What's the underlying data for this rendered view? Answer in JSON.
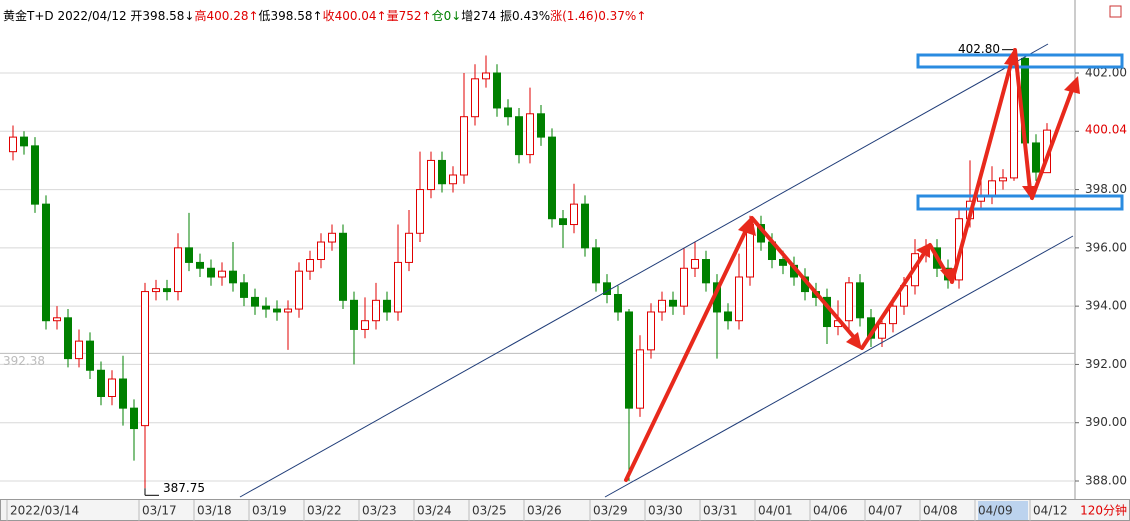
{
  "chart_data": {
    "type": "candlestick",
    "title_parts": [
      {
        "text": "黄金T+D 2022/04/12 开398.58↓",
        "color": "#000000"
      },
      {
        "text": "高400.28↑",
        "color": "#e00000"
      },
      {
        "text": "低398.58↑",
        "color": "#000000"
      },
      {
        "text": "收400.04↑",
        "color": "#e00000"
      },
      {
        "text": "量752↑",
        "color": "#e00000"
      },
      {
        "text": "仓0↓",
        "color": "#008000"
      },
      {
        "text": "增274 振0.43%",
        "color": "#000000"
      },
      {
        "text": "涨(1.46)0.37%↑",
        "color": "#e00000"
      }
    ],
    "period": "120分钟",
    "up_color": "#e00000",
    "down_color": "#008000",
    "ylim": [
      387.52,
      404.23
    ],
    "yticks": [
      {
        "value": 388,
        "label": "388.00"
      },
      {
        "value": 390,
        "label": "390.00"
      },
      {
        "value": 392,
        "label": "392.00"
      },
      {
        "value": 394,
        "label": "394.00"
      },
      {
        "value": 396,
        "label": "396.00"
      },
      {
        "value": 398,
        "label": "398.00"
      },
      {
        "value": 400,
        "label": "400.00"
      },
      {
        "value": 402,
        "label": "402.00"
      }
    ],
    "grid": true,
    "last_price": {
      "value": 400.04,
      "label": "400.04"
    },
    "high_label": {
      "value": 402.8,
      "label": "402.80"
    },
    "low_label": {
      "value": 387.75,
      "label": "387.75"
    },
    "ref_line": {
      "value": 392.38,
      "label": "392.38"
    },
    "categories": [
      "2022/03/14",
      null,
      null,
      null,
      null,
      null,
      null,
      null,
      null,
      null,
      null,
      null,
      "03/17",
      null,
      null,
      null,
      null,
      "03/18",
      null,
      null,
      null,
      null,
      "03/19",
      null,
      null,
      null,
      null,
      "03/22",
      null,
      null,
      null,
      null,
      "03/23",
      null,
      null,
      null,
      null,
      "03/24",
      null,
      null,
      null,
      null,
      "03/25",
      null,
      null,
      null,
      null,
      "03/26",
      null,
      null,
      null,
      null,
      null,
      "03/29",
      null,
      null,
      null,
      null,
      "03/30",
      null,
      null,
      null,
      null,
      "03/31",
      null,
      null,
      null,
      null,
      "04/01",
      null,
      null,
      null,
      null,
      "04/06",
      null,
      null,
      null,
      null,
      "04/07",
      null,
      null,
      null,
      null,
      "04/08",
      null,
      null,
      null,
      null,
      "04/09",
      null,
      null,
      null,
      null,
      "04/12",
      null
    ],
    "candles": [
      [
        399.3,
        400.2,
        399.0,
        399.8
      ],
      [
        399.8,
        400.0,
        399.2,
        399.5
      ],
      [
        399.5,
        399.8,
        397.2,
        397.5
      ],
      [
        397.5,
        397.8,
        393.2,
        393.5
      ],
      [
        393.5,
        394.0,
        393.2,
        393.6
      ],
      [
        393.6,
        393.9,
        391.9,
        392.2
      ],
      [
        392.2,
        393.2,
        391.9,
        392.8
      ],
      [
        392.8,
        393.1,
        391.5,
        391.8
      ],
      [
        391.8,
        392.1,
        390.6,
        390.9
      ],
      [
        390.9,
        391.8,
        390.6,
        391.5
      ],
      [
        391.5,
        392.3,
        389.9,
        390.5
      ],
      [
        390.5,
        390.8,
        388.7,
        389.8
      ],
      [
        389.9,
        394.8,
        387.75,
        394.5
      ],
      [
        394.5,
        394.9,
        394.2,
        394.6
      ],
      [
        394.6,
        394.9,
        394.2,
        394.5
      ],
      [
        394.5,
        396.5,
        394.2,
        396.0
      ],
      [
        396.0,
        397.2,
        395.2,
        395.5
      ],
      [
        395.5,
        395.8,
        395.0,
        395.3
      ],
      [
        395.3,
        395.6,
        394.7,
        395.0
      ],
      [
        395.0,
        395.5,
        394.7,
        395.2
      ],
      [
        395.2,
        396.2,
        394.5,
        394.8
      ],
      [
        394.8,
        395.1,
        394.0,
        394.3
      ],
      [
        394.3,
        394.6,
        393.7,
        394.0
      ],
      [
        394.0,
        394.3,
        393.6,
        393.9
      ],
      [
        393.9,
        394.2,
        393.5,
        393.8
      ],
      [
        393.8,
        394.2,
        392.5,
        393.9
      ],
      [
        393.9,
        395.5,
        393.6,
        395.2
      ],
      [
        395.2,
        395.9,
        394.9,
        395.6
      ],
      [
        395.6,
        396.5,
        395.3,
        396.2
      ],
      [
        396.2,
        396.8,
        395.9,
        396.5
      ],
      [
        396.5,
        396.8,
        393.9,
        394.2
      ],
      [
        394.2,
        394.5,
        392.0,
        393.2
      ],
      [
        393.2,
        394.3,
        392.9,
        393.5
      ],
      [
        393.5,
        394.8,
        393.2,
        394.2
      ],
      [
        394.2,
        394.5,
        393.5,
        393.8
      ],
      [
        393.8,
        396.8,
        393.5,
        395.5
      ],
      [
        395.5,
        397.3,
        395.2,
        396.5
      ],
      [
        396.5,
        399.3,
        396.2,
        398.0
      ],
      [
        398.0,
        399.3,
        397.7,
        399.0
      ],
      [
        399.0,
        399.3,
        397.9,
        398.2
      ],
      [
        398.2,
        398.8,
        397.9,
        398.5
      ],
      [
        398.5,
        402.0,
        398.2,
        400.5
      ],
      [
        400.5,
        402.3,
        400.2,
        401.8
      ],
      [
        401.8,
        402.6,
        401.5,
        402.0
      ],
      [
        402.0,
        402.3,
        400.5,
        400.8
      ],
      [
        400.8,
        401.1,
        400.2,
        400.5
      ],
      [
        400.5,
        400.8,
        398.9,
        399.2
      ],
      [
        399.2,
        401.5,
        398.9,
        400.6
      ],
      [
        400.6,
        400.9,
        399.5,
        399.8
      ],
      [
        399.8,
        400.1,
        396.7,
        397.0
      ],
      [
        397.0,
        397.3,
        396.0,
        396.8
      ],
      [
        396.8,
        398.2,
        396.5,
        397.5
      ],
      [
        397.5,
        397.8,
        395.7,
        396.0
      ],
      [
        396.0,
        396.3,
        394.5,
        394.8
      ],
      [
        394.8,
        395.1,
        394.1,
        394.4
      ],
      [
        394.4,
        394.7,
        393.5,
        393.8
      ],
      [
        393.8,
        393.9,
        388.0,
        390.5
      ],
      [
        390.5,
        393.0,
        390.2,
        392.5
      ],
      [
        392.5,
        394.1,
        392.2,
        393.8
      ],
      [
        393.8,
        394.5,
        393.5,
        394.2
      ],
      [
        394.2,
        394.5,
        393.7,
        394.0
      ],
      [
        394.0,
        396.0,
        393.7,
        395.3
      ],
      [
        395.3,
        396.2,
        395.0,
        395.6
      ],
      [
        395.6,
        395.9,
        394.5,
        394.8
      ],
      [
        394.8,
        395.1,
        392.2,
        393.8
      ],
      [
        393.8,
        394.1,
        393.2,
        393.5
      ],
      [
        393.5,
        395.8,
        393.2,
        395.0
      ],
      [
        395.0,
        397.1,
        394.7,
        396.8
      ],
      [
        396.8,
        397.1,
        395.9,
        396.2
      ],
      [
        396.2,
        396.5,
        395.3,
        395.6
      ],
      [
        395.6,
        395.9,
        395.1,
        395.4
      ],
      [
        395.4,
        395.7,
        394.7,
        395.0
      ],
      [
        395.0,
        395.3,
        394.2,
        394.5
      ],
      [
        394.5,
        394.8,
        394.0,
        394.3
      ],
      [
        394.3,
        394.6,
        392.7,
        393.3
      ],
      [
        393.3,
        394.2,
        393.0,
        393.5
      ],
      [
        393.5,
        395.0,
        393.2,
        394.8
      ],
      [
        394.8,
        395.1,
        393.3,
        393.6
      ],
      [
        393.6,
        393.9,
        392.6,
        392.9
      ],
      [
        392.9,
        393.7,
        392.6,
        393.4
      ],
      [
        393.4,
        394.3,
        393.1,
        394.0
      ],
      [
        394.0,
        395.0,
        393.7,
        394.7
      ],
      [
        394.7,
        396.3,
        394.4,
        395.8
      ],
      [
        395.8,
        396.3,
        395.5,
        396.0
      ],
      [
        396.0,
        396.3,
        395.0,
        395.3
      ],
      [
        395.3,
        395.6,
        394.6,
        394.9
      ],
      [
        394.9,
        397.3,
        394.6,
        397.0
      ],
      [
        397.0,
        399.0,
        396.7,
        397.6
      ],
      [
        397.6,
        398.5,
        397.3,
        397.8
      ],
      [
        397.8,
        398.8,
        397.5,
        398.3
      ],
      [
        398.3,
        398.7,
        398.0,
        398.4
      ],
      [
        398.4,
        402.8,
        398.3,
        402.5
      ],
      [
        402.5,
        402.6,
        399.3,
        399.6
      ],
      [
        399.6,
        399.9,
        398.3,
        398.6
      ],
      [
        398.58,
        400.28,
        398.58,
        400.04
      ]
    ]
  }
}
